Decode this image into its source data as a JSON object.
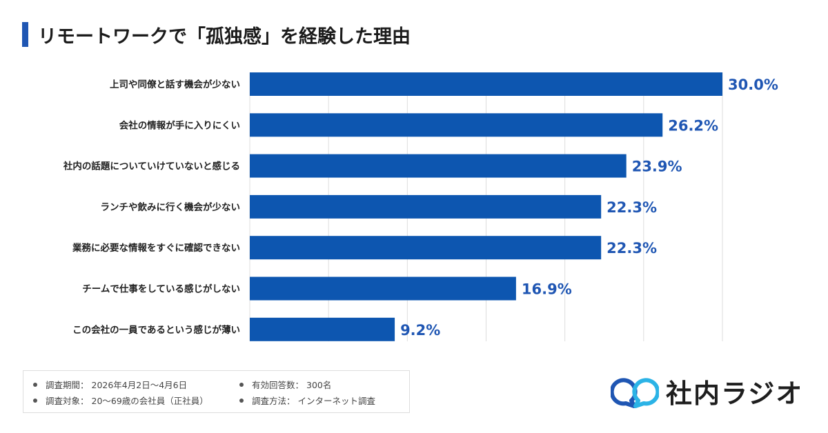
{
  "chart_data": {
    "type": "bar",
    "orientation": "horizontal",
    "title": "リモートワークで「孤独感」を経験した理由",
    "categories": [
      "上司や同僚と話す機会が少ない",
      "会社の情報が手に入りにくい",
      "社内の話題についていけていないと感じる",
      "ランチや飲みに行く機会が少ない",
      "業務に必要な情報をすぐに確認できない",
      "チームで仕事をしている感じがしない",
      "この会社の一員であるという感じが薄い"
    ],
    "values": [
      30.0,
      26.2,
      23.9,
      22.3,
      22.3,
      16.9,
      9.2
    ],
    "data_labels": [
      "30.0%",
      "26.2%",
      "23.9%",
      "22.3%",
      "22.3%",
      "16.9%",
      "9.2%"
    ],
    "xlim": [
      0,
      30
    ],
    "grid": true,
    "grid_step": 5,
    "bar_color": "#0d56b0",
    "label_color": "#1f56b3"
  },
  "notes": [
    {
      "label": "調査期間：",
      "value": "2026年4月2日〜4月6日"
    },
    {
      "label": "有効回答数：",
      "value": "300名"
    },
    {
      "label": "調査対象：",
      "value": "20〜69歳の会社員（正社員）"
    },
    {
      "label": "調査方法：",
      "value": "インターネット調査"
    }
  ],
  "logo": {
    "text": "社内ラジオ"
  }
}
